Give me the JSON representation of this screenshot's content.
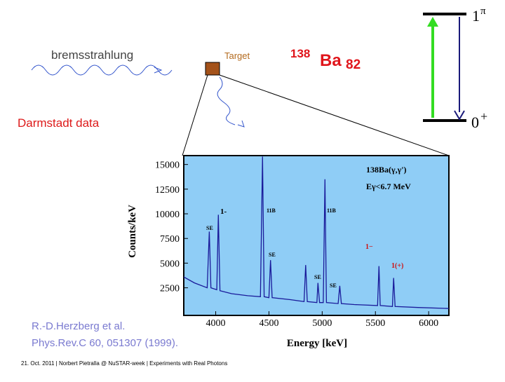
{
  "slide": {
    "bremsstrahlung": "bremsstrahlung",
    "target": "Target",
    "nucleus": {
      "mass": "138",
      "symbol": "Ba",
      "neutrons": "82"
    },
    "upper_level": {
      "j": "1",
      "parity": "π"
    },
    "lower_level": {
      "j": "0",
      "parity": "+"
    },
    "darmstadt": "Darmstadt data",
    "reference": [
      "R.-D.Herzberg et al.",
      "Phys.Rev.C 60, 051307 (1999)."
    ],
    "footer": "21. Oct. 2011  |  Norbert Pietralla @ NuSTAR-week  |  Experiments with Real Photons"
  },
  "chart_data": {
    "type": "line",
    "xlabel": "Energy  [keV]",
    "ylabel": "Counts/keV",
    "xlim": [
      3700,
      6190
    ],
    "ylim": [
      -300,
      15900
    ],
    "xticks": [
      4000,
      4500,
      5000,
      5500,
      6000
    ],
    "yticks": [
      2500,
      5000,
      7500,
      10000,
      12500,
      15000
    ],
    "annotations": {
      "reaction": "138Ba(γ,γ')",
      "energy": "Eγ<6.7 MeV",
      "peaks": [
        "SE",
        "1-",
        "11B",
        "SE",
        "11B",
        "SE",
        "SE",
        "1−",
        "1(+)"
      ]
    },
    "series": [
      {
        "color": "#1a1a9a",
        "x": [
          3700,
          3800,
          3920,
          3940,
          3955,
          4010,
          4025,
          4040,
          4150,
          4300,
          4420,
          4440,
          4455,
          4500,
          4515,
          4530,
          4700,
          4830,
          4845,
          4860,
          4950,
          4960,
          4975,
          5010,
          5026,
          5040,
          5150,
          5165,
          5180,
          5300,
          5520,
          5533,
          5545,
          5660,
          5671,
          5685,
          5900,
          6190
        ],
        "values": [
          3600,
          3000,
          2500,
          8200,
          2500,
          2300,
          9900,
          2200,
          1900,
          1700,
          1600,
          15800,
          1600,
          1500,
          5300,
          1500,
          1300,
          1100,
          4800,
          1100,
          1000,
          3000,
          1000,
          1000,
          13500,
          1000,
          900,
          2700,
          900,
          800,
          700,
          4700,
          700,
          600,
          3500,
          600,
          500,
          400
        ]
      }
    ]
  }
}
